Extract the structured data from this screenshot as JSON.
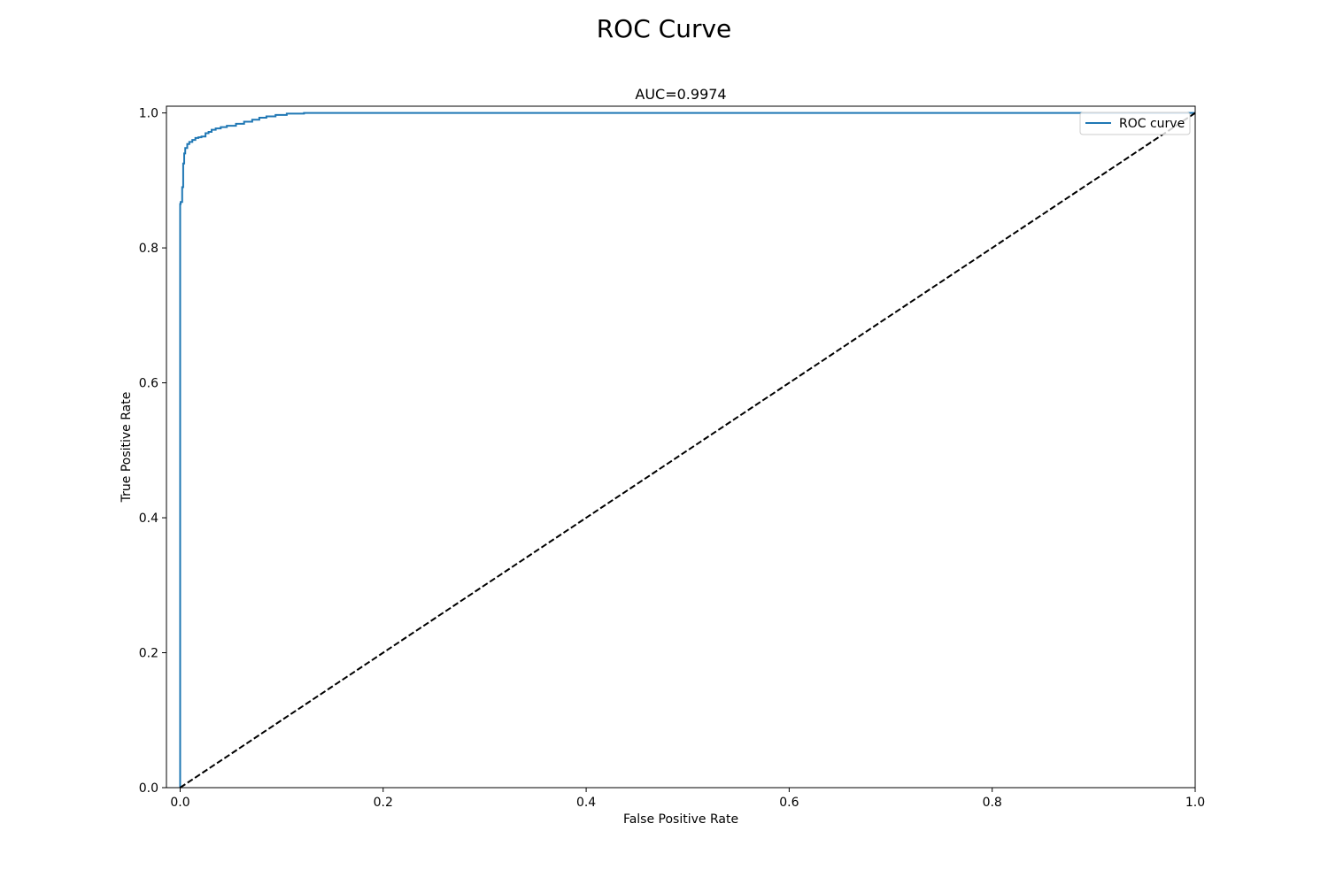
{
  "chart_data": {
    "type": "line",
    "title": "ROC Curve",
    "subtitle": "AUC=0.9974",
    "xlabel": "False Positive Rate",
    "ylabel": "True Positive Rate",
    "xlim": [
      -0.0135,
      1.0
    ],
    "ylim": [
      0.0,
      1.01
    ],
    "xticks": [
      "0.0",
      "0.2",
      "0.4",
      "0.6",
      "0.8",
      "1.0"
    ],
    "yticks": [
      "0.0",
      "0.2",
      "0.4",
      "0.6",
      "0.8",
      "1.0"
    ],
    "grid": false,
    "legend": {
      "position": "top-right",
      "entries": [
        "ROC curve"
      ]
    },
    "series": [
      {
        "name": "ROC curve",
        "color": "#1f77b4",
        "style": "solid",
        "x": [
          0.0,
          0.0,
          0.0005,
          0.0005,
          0.002,
          0.002,
          0.003,
          0.003,
          0.004,
          0.004,
          0.005,
          0.005,
          0.007,
          0.007,
          0.009,
          0.009,
          0.012,
          0.012,
          0.015,
          0.015,
          0.018,
          0.018,
          0.021,
          0.021,
          0.025,
          0.025,
          0.028,
          0.028,
          0.031,
          0.031,
          0.035,
          0.035,
          0.04,
          0.04,
          0.046,
          0.046,
          0.055,
          0.055,
          0.063,
          0.063,
          0.071,
          0.071,
          0.078,
          0.078,
          0.085,
          0.085,
          0.094,
          0.094,
          0.105,
          0.105,
          0.122,
          0.122,
          1.0
        ],
        "y": [
          0.0,
          0.865,
          0.865,
          0.868,
          0.868,
          0.89,
          0.89,
          0.925,
          0.925,
          0.94,
          0.94,
          0.948,
          0.948,
          0.954,
          0.954,
          0.957,
          0.957,
          0.96,
          0.96,
          0.963,
          0.963,
          0.964,
          0.964,
          0.965,
          0.965,
          0.97,
          0.97,
          0.972,
          0.972,
          0.975,
          0.975,
          0.977,
          0.977,
          0.979,
          0.979,
          0.981,
          0.981,
          0.984,
          0.984,
          0.987,
          0.987,
          0.99,
          0.99,
          0.993,
          0.993,
          0.995,
          0.995,
          0.997,
          0.997,
          0.999,
          0.999,
          1.0,
          1.0
        ]
      },
      {
        "name": "",
        "color": "#000000",
        "style": "dashed",
        "x": [
          0.0,
          1.0
        ],
        "y": [
          0.0,
          1.0
        ]
      }
    ]
  }
}
